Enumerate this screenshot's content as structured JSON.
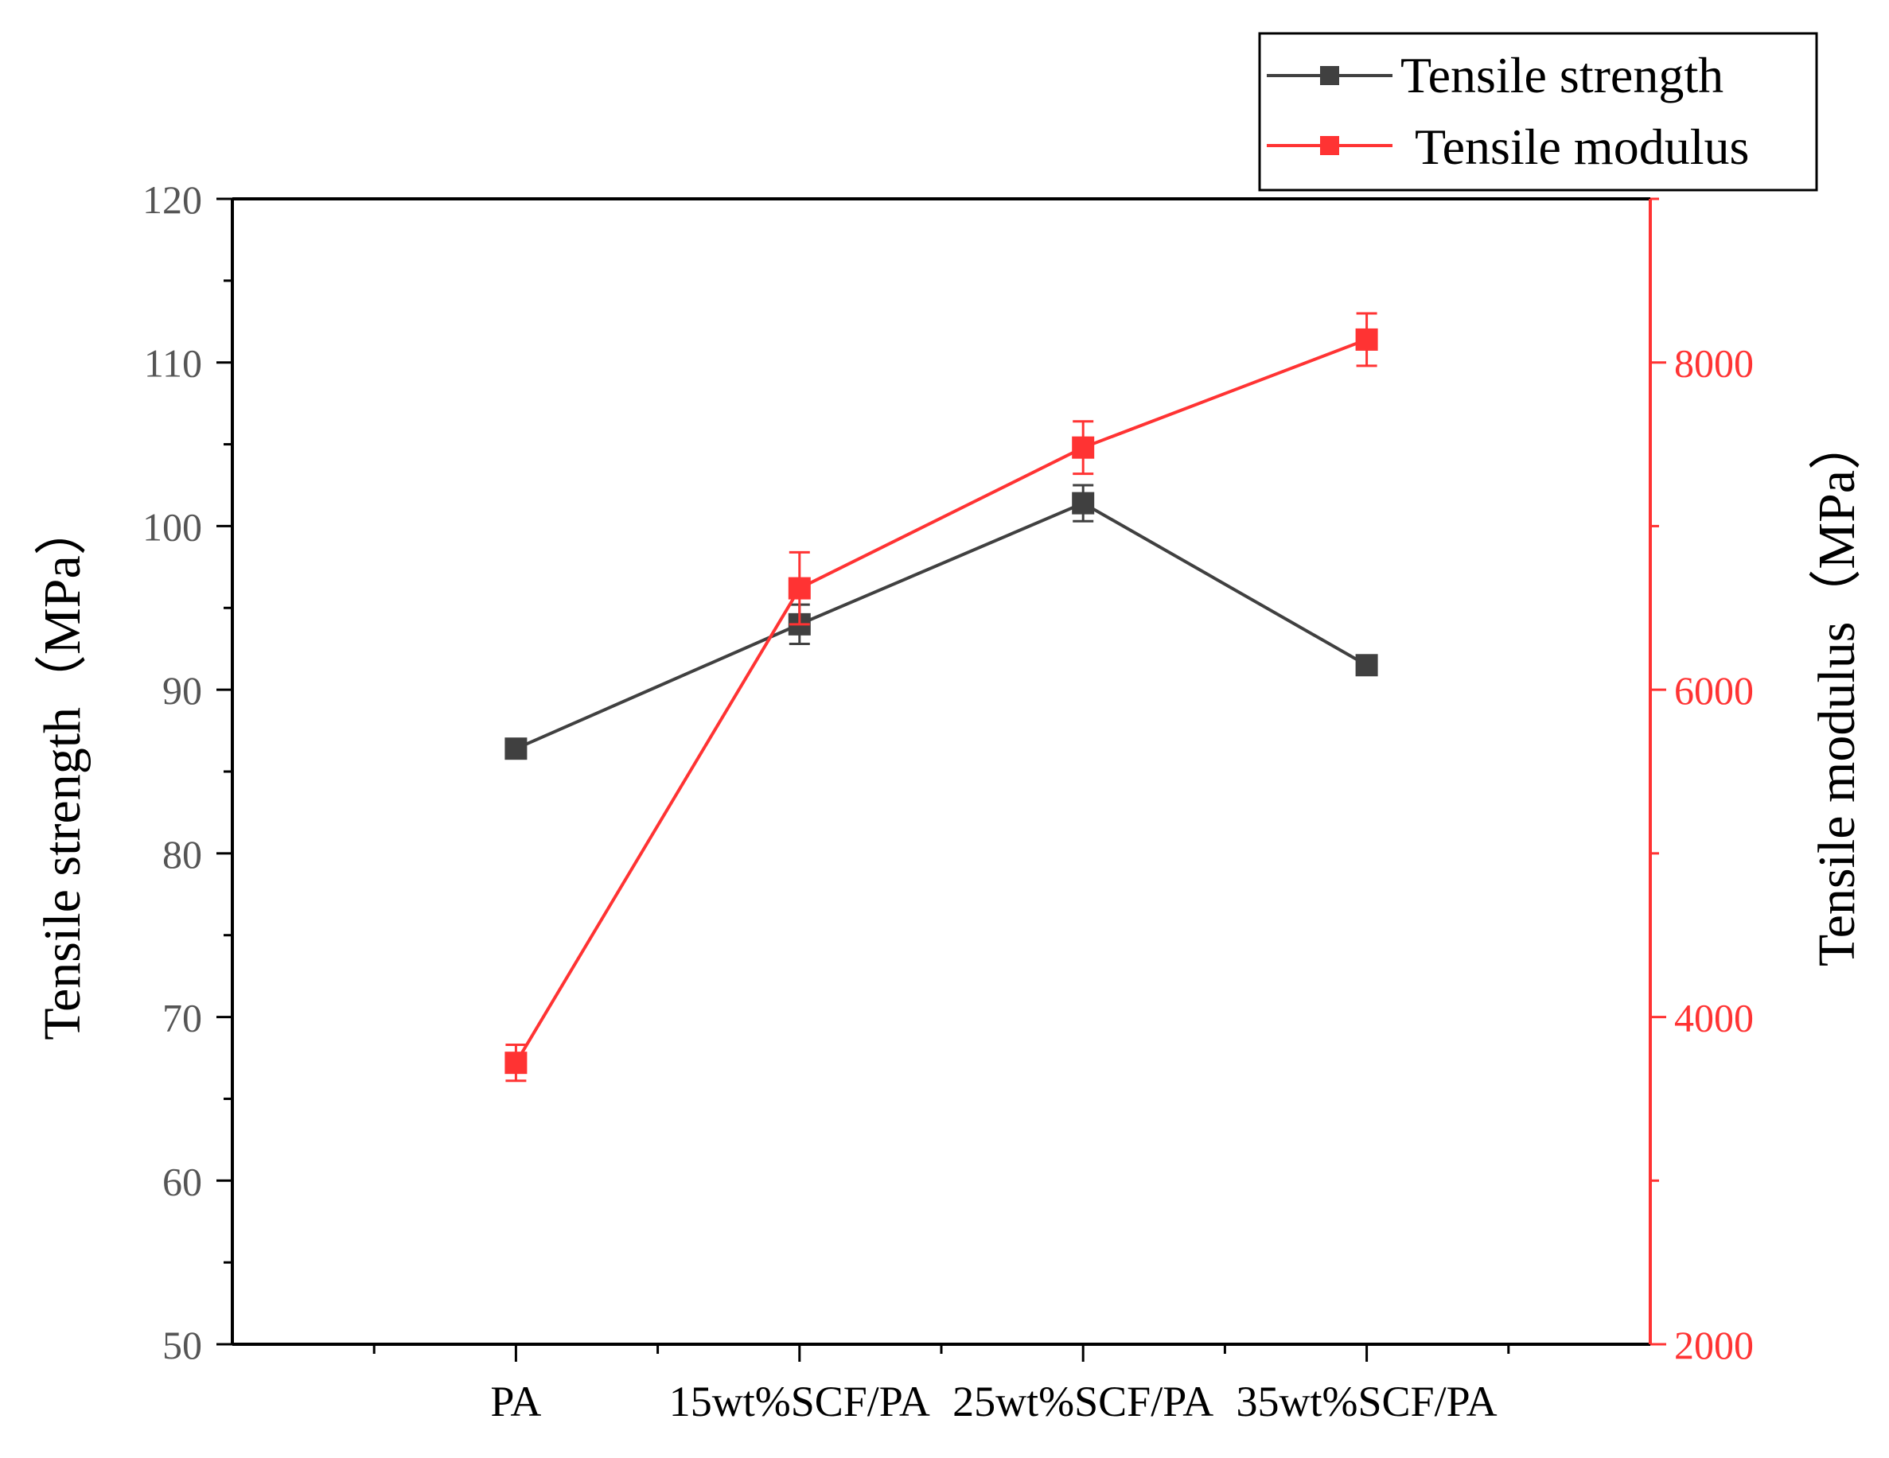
{
  "chart_data": {
    "type": "line",
    "categories": [
      "PA",
      "15wt%SCF/PA",
      "25wt%SCF/PA",
      "35wt%SCF/PA"
    ],
    "series": [
      {
        "name": "Tensile strength",
        "axis": "left",
        "color": "#404040",
        "values": [
          86.4,
          94.0,
          101.4,
          91.5
        ],
        "errors": [
          0.4,
          1.2,
          1.1,
          0.5
        ]
      },
      {
        "name": "Tensile modulus",
        "axis": "right",
        "color": "#ff3333",
        "values": [
          3720,
          6620,
          7480,
          8140
        ],
        "errors": [
          110,
          220,
          160,
          160
        ]
      }
    ],
    "ylabel_left": "Tensile strength（MPa）",
    "ylabel_right": "Tensile modulus（MPa）",
    "ylim_left": [
      50,
      120
    ],
    "yticks_left": [
      "50",
      "60",
      "70",
      "80",
      "90",
      "100",
      "110",
      "120"
    ],
    "ylim_right": [
      2000,
      9000
    ],
    "yticks_right": [
      "2000",
      "4000",
      "6000",
      "8000"
    ],
    "legend": {
      "position": "top-right",
      "entries": [
        "Tensile strength",
        "Tensile modulus"
      ]
    },
    "right_axis_color": "#ff3333"
  }
}
